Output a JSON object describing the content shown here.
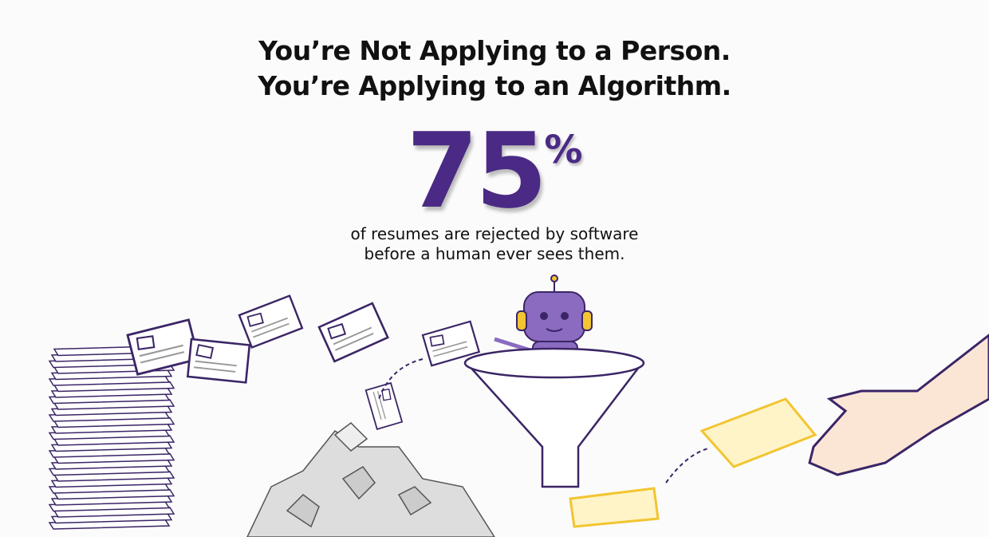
{
  "headline": {
    "line1": "You’re Not Applying to a Person.",
    "line2": "You’re Applying to an Algorithm."
  },
  "stat": {
    "value": "75",
    "unit": "%",
    "caption_line1": "of resumes are rejected by software",
    "caption_line2": "before a human ever sees them."
  },
  "colors": {
    "accent": "#4a2a85",
    "robot": "#8a6bc0",
    "highlight": "#f2c531",
    "outline": "#3b2566"
  },
  "illustration": {
    "icons": [
      "resume-stack-icon",
      "flying-resume-icon",
      "crumpled-resume-pile-icon",
      "robot-icon",
      "funnel-icon",
      "approved-resume-icon",
      "hand-icon",
      "arrow-icon"
    ]
  }
}
